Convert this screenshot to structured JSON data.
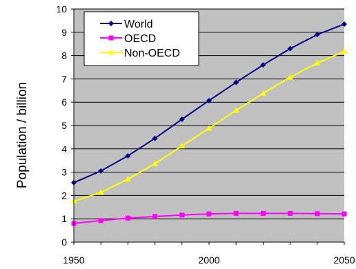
{
  "chart_data": {
    "type": "line",
    "title": "",
    "xlabel": "",
    "ylabel": "Population / billion",
    "xlim": [
      1950,
      2050
    ],
    "ylim": [
      0,
      10
    ],
    "x_ticks": [
      "1950",
      "2000",
      "2050"
    ],
    "y_ticks": [
      "0",
      "1",
      "2",
      "3",
      "4",
      "5",
      "6",
      "7",
      "8",
      "9",
      "10"
    ],
    "grid": "horizontal",
    "plot_background": "#c0c0c0",
    "legend_position": "top-left",
    "x": [
      1950,
      1960,
      1970,
      1980,
      1990,
      2000,
      2010,
      2020,
      2030,
      2040,
      2050
    ],
    "series": [
      {
        "name": "World",
        "color": "#000080",
        "marker": "diamond",
        "values": [
          2.55,
          3.05,
          3.7,
          4.45,
          5.27,
          6.07,
          6.85,
          7.6,
          8.3,
          8.9,
          9.35
        ]
      },
      {
        "name": "OECD",
        "color": "#ff00ff",
        "marker": "square",
        "values": [
          0.8,
          0.92,
          1.03,
          1.1,
          1.16,
          1.21,
          1.23,
          1.23,
          1.23,
          1.22,
          1.21
        ]
      },
      {
        "name": "Non-OECD",
        "color": "#ffff00",
        "marker": "triangle",
        "values": [
          1.75,
          2.13,
          2.7,
          3.37,
          4.12,
          4.88,
          5.65,
          6.38,
          7.07,
          7.68,
          8.18
        ]
      }
    ]
  }
}
